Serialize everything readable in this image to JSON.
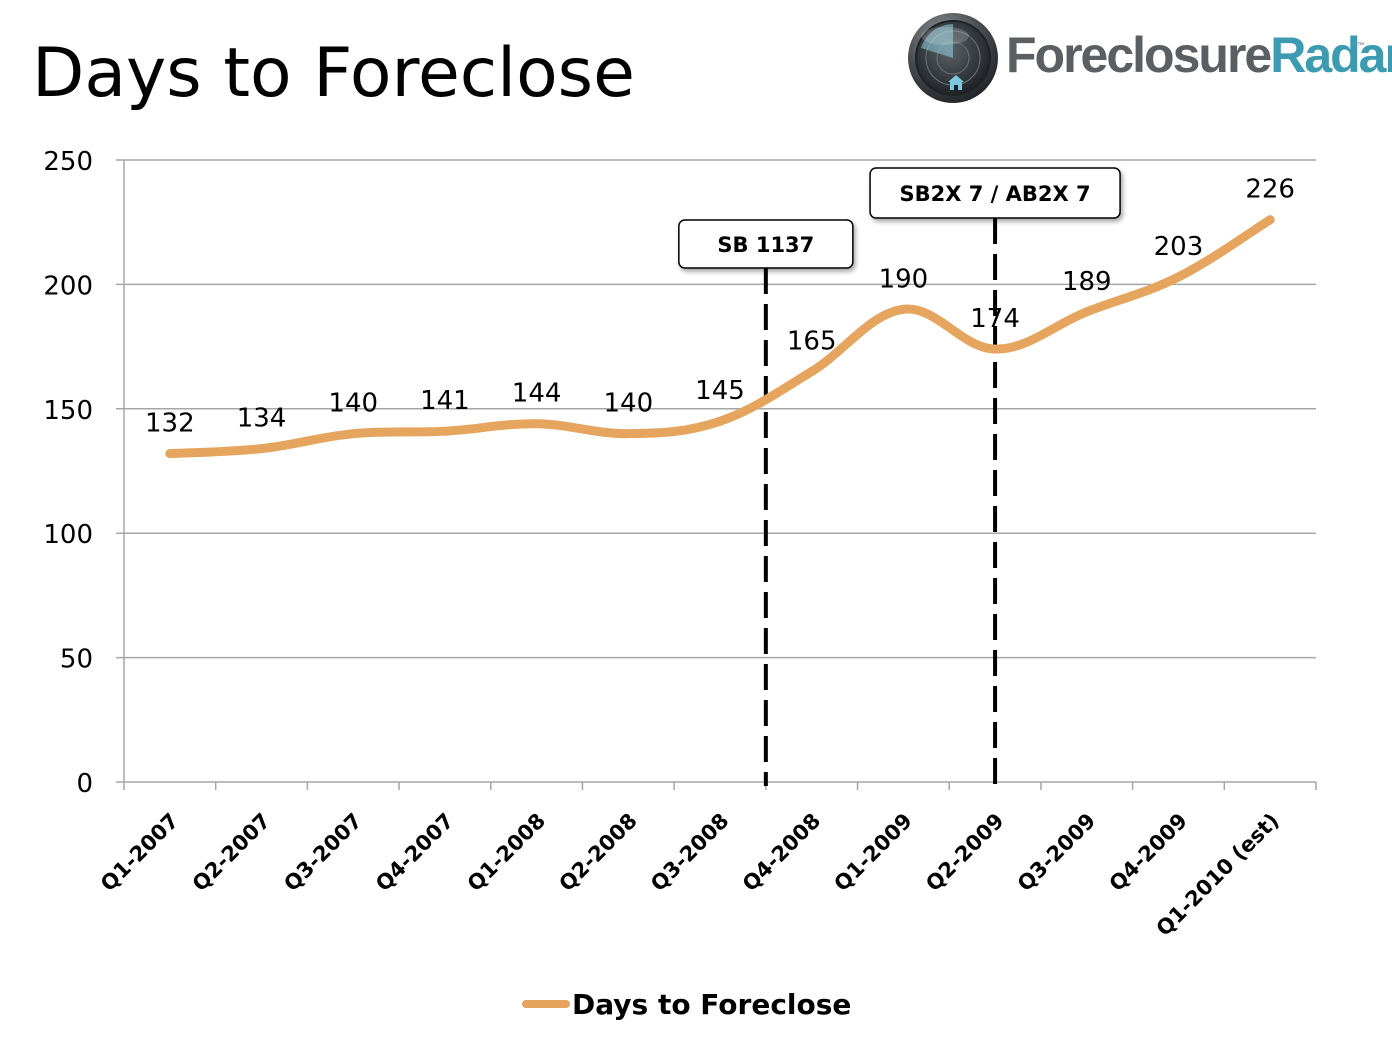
{
  "title": "Days to Foreclose",
  "logo": {
    "text_part1": "Foreclosure",
    "text_part2": "Radar",
    "tm": "™",
    "icon": "radar-house-icon"
  },
  "colors": {
    "line": "#e6a55e",
    "grid": "#a6a6a6",
    "logo_gray": "#5a5f63",
    "logo_teal": "#3c9bb1"
  },
  "chart_data": {
    "type": "line",
    "categories": [
      "Q1-2007",
      "Q2-2007",
      "Q3-2007",
      "Q4-2007",
      "Q1-2008",
      "Q2-2008",
      "Q3-2008",
      "Q4-2008",
      "Q1-2009",
      "Q2-2009",
      "Q3-2009",
      "Q4-2009",
      "Q1-2010 (est)"
    ],
    "series": [
      {
        "name": "Days to Foreclose",
        "values": [
          132,
          134,
          140,
          141,
          144,
          140,
          145,
          165,
          190,
          174,
          189,
          203,
          226
        ]
      }
    ],
    "data_labels": [
      "132",
      "134",
      "140",
      "141",
      "144",
      "140",
      "145",
      "165",
      "190",
      "174",
      "189",
      "203",
      "226"
    ],
    "ylim": [
      0,
      250
    ],
    "yticks": [
      0,
      50,
      100,
      150,
      200,
      250
    ],
    "grid": true,
    "smooth": true,
    "legend_position": "bottom",
    "annotations": [
      {
        "label": "SB 1137",
        "between": [
          "Q3-2008",
          "Q4-2008"
        ]
      },
      {
        "label": "SB2X 7 / AB2X 7",
        "at": "Q2-2009"
      }
    ]
  }
}
